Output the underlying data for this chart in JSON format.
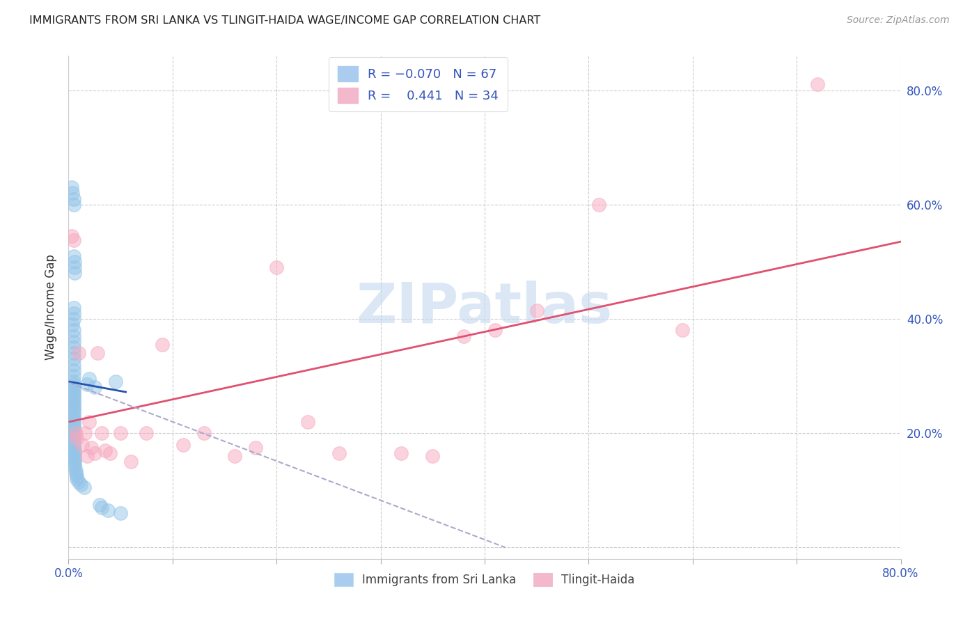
{
  "title": "IMMIGRANTS FROM SRI LANKA VS TLINGIT-HAIDA WAGE/INCOME GAP CORRELATION CHART",
  "source": "Source: ZipAtlas.com",
  "ylabel": "Wage/Income Gap",
  "xlim": [
    0.0,
    0.8
  ],
  "ylim": [
    -0.02,
    0.86
  ],
  "color_blue": "#93c4e8",
  "color_pink": "#f7a8be",
  "watermark": "ZIPatlas",
  "blue_scatter_x": [
    0.003,
    0.004,
    0.005,
    0.005,
    0.005,
    0.006,
    0.006,
    0.006,
    0.005,
    0.005,
    0.005,
    0.004,
    0.005,
    0.005,
    0.005,
    0.005,
    0.005,
    0.005,
    0.005,
    0.005,
    0.005,
    0.005,
    0.005,
    0.005,
    0.005,
    0.005,
    0.005,
    0.005,
    0.005,
    0.005,
    0.005,
    0.005,
    0.005,
    0.005,
    0.005,
    0.005,
    0.005,
    0.005,
    0.005,
    0.005,
    0.005,
    0.005,
    0.005,
    0.005,
    0.005,
    0.006,
    0.006,
    0.006,
    0.006,
    0.006,
    0.006,
    0.006,
    0.007,
    0.007,
    0.008,
    0.008,
    0.01,
    0.012,
    0.015,
    0.018,
    0.02,
    0.025,
    0.03,
    0.032,
    0.038,
    0.045,
    0.05
  ],
  "blue_scatter_y": [
    0.63,
    0.62,
    0.61,
    0.6,
    0.51,
    0.5,
    0.49,
    0.48,
    0.42,
    0.41,
    0.4,
    0.39,
    0.38,
    0.37,
    0.36,
    0.35,
    0.34,
    0.33,
    0.32,
    0.31,
    0.3,
    0.29,
    0.285,
    0.28,
    0.275,
    0.27,
    0.265,
    0.26,
    0.255,
    0.25,
    0.245,
    0.24,
    0.235,
    0.23,
    0.225,
    0.22,
    0.215,
    0.21,
    0.205,
    0.2,
    0.195,
    0.19,
    0.185,
    0.18,
    0.175,
    0.17,
    0.165,
    0.16,
    0.155,
    0.15,
    0.145,
    0.14,
    0.135,
    0.13,
    0.125,
    0.12,
    0.115,
    0.11,
    0.105,
    0.285,
    0.295,
    0.28,
    0.075,
    0.07,
    0.065,
    0.29,
    0.06
  ],
  "pink_scatter_x": [
    0.003,
    0.005,
    0.007,
    0.008,
    0.01,
    0.013,
    0.016,
    0.018,
    0.02,
    0.022,
    0.025,
    0.028,
    0.032,
    0.035,
    0.04,
    0.05,
    0.06,
    0.075,
    0.09,
    0.11,
    0.13,
    0.16,
    0.18,
    0.2,
    0.23,
    0.26,
    0.32,
    0.35,
    0.38,
    0.41,
    0.45,
    0.51,
    0.59,
    0.72
  ],
  "pink_scatter_y": [
    0.545,
    0.538,
    0.2,
    0.19,
    0.34,
    0.18,
    0.2,
    0.16,
    0.22,
    0.175,
    0.165,
    0.34,
    0.2,
    0.17,
    0.165,
    0.2,
    0.15,
    0.2,
    0.355,
    0.18,
    0.2,
    0.16,
    0.175,
    0.49,
    0.22,
    0.165,
    0.165,
    0.16,
    0.37,
    0.38,
    0.415,
    0.6,
    0.38,
    0.81
  ],
  "blue_line_x": [
    0.001,
    0.055
  ],
  "blue_line_y": [
    0.29,
    0.272
  ],
  "pink_line_x": [
    0.001,
    0.8
  ],
  "pink_line_y": [
    0.22,
    0.535
  ],
  "dash_line_x": [
    0.001,
    0.42
  ],
  "dash_line_y": [
    0.288,
    0.0
  ]
}
